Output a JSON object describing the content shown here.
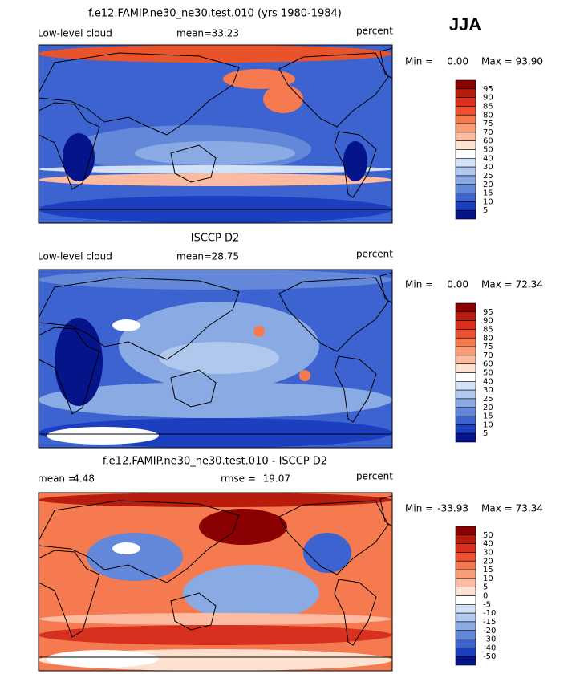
{
  "season": "JJA",
  "panels": [
    {
      "title": "f.e12.FAMIP.ne30_ne30.test.010 (yrs 1980-1984)",
      "field": "Low-level cloud",
      "stat1_label": "mean=",
      "stat1_value": "33.23",
      "units": "percent",
      "min_label": "Min =",
      "min": "0.00",
      "max_label": "Max =",
      "max": "93.90",
      "colorbar_labels": [
        "95",
        "90",
        "85",
        "80",
        "75",
        "70",
        "60",
        "50",
        "40",
        "30",
        "25",
        "20",
        "15",
        "10",
        "5"
      ],
      "colorbar_colors": [
        "#8b0000",
        "#b71c0c",
        "#d7301f",
        "#ef5030",
        "#f57a50",
        "#fb9b73",
        "#fcbba0",
        "#fde2d2",
        "#ffffff",
        "#d3e1f5",
        "#b0c8ee",
        "#8aaae4",
        "#6388da",
        "#3d63d0",
        "#1c3fc0",
        "#06148a"
      ]
    },
    {
      "title": "ISCCP D2",
      "field": "Low-level cloud",
      "stat1_label": "mean=",
      "stat1_value": "28.75",
      "units": "percent",
      "min_label": "Min =",
      "min": "0.00",
      "max_label": "Max =",
      "max": "72.34",
      "colorbar_labels": [
        "95",
        "90",
        "85",
        "80",
        "75",
        "70",
        "60",
        "50",
        "40",
        "30",
        "25",
        "20",
        "15",
        "10",
        "5"
      ],
      "colorbar_colors": [
        "#8b0000",
        "#b71c0c",
        "#d7301f",
        "#ef5030",
        "#f57a50",
        "#fb9b73",
        "#fcbba0",
        "#fde2d2",
        "#ffffff",
        "#d3e1f5",
        "#b0c8ee",
        "#8aaae4",
        "#6388da",
        "#3d63d0",
        "#1c3fc0",
        "#06148a"
      ]
    },
    {
      "title": "f.e12.FAMIP.ne30_ne30.test.010 - ISCCP D2",
      "stat1_label": "mean =",
      "stat1_value": "4.48",
      "stat2_label": "rmse =",
      "stat2_value": "19.07",
      "units": "percent",
      "min_label": "Min =",
      "min": "-33.93",
      "max_label": "Max =",
      "max": "73.34",
      "colorbar_labels": [
        "50",
        "40",
        "30",
        "20",
        "15",
        "10",
        "5",
        "0",
        "-5",
        "-10",
        "-15",
        "-20",
        "-30",
        "-40",
        "-50"
      ],
      "colorbar_colors": [
        "#8b0000",
        "#b71c0c",
        "#d7301f",
        "#ef5030",
        "#f57a50",
        "#fb9b73",
        "#fcbba0",
        "#fde2d2",
        "#ffffff",
        "#d3e1f5",
        "#b0c8ee",
        "#8aaae4",
        "#6388da",
        "#3d63d0",
        "#1c3fc0",
        "#06148a"
      ]
    }
  ]
}
